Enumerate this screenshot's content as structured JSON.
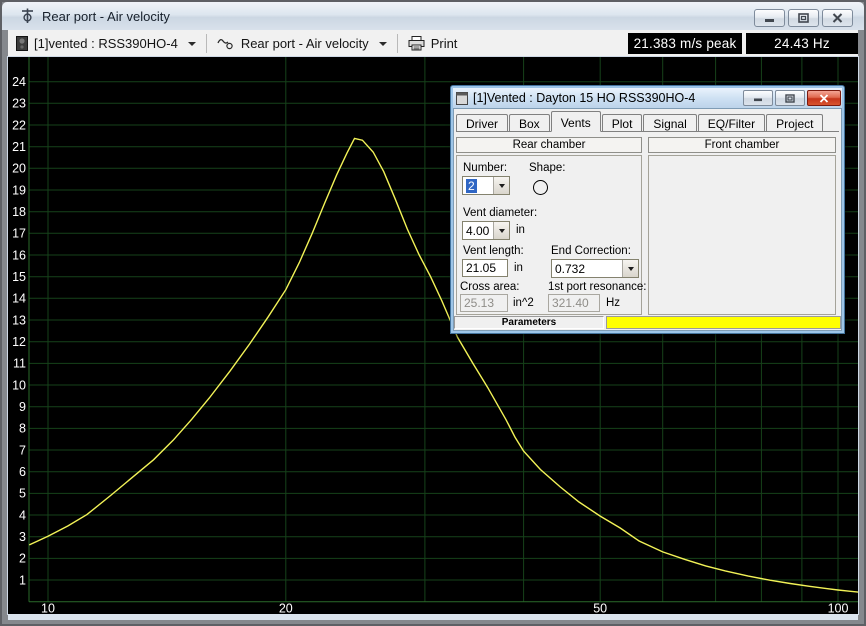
{
  "window": {
    "title": "Rear port - Air velocity"
  },
  "icons": {
    "window": "port-crosshair-icon",
    "driver_select": "speaker-box-icon",
    "plot_select": "sine-wave-port-icon",
    "print": "printer-icon",
    "dialog": "form-icon",
    "shape": "circle-shape-icon"
  },
  "toolbar": {
    "driver_select": "[1]vented : RSS390HO-4",
    "plot_select": "Rear port - Air velocity",
    "print_label": "Print",
    "peak_readout": "21.383 m/s peak",
    "freq_readout": "24.43 Hz"
  },
  "chart_data": {
    "type": "line",
    "title": "Rear port - Air velocity",
    "xlabel": "",
    "ylabel": "",
    "x_scale": "log",
    "x_range": [
      8.9,
      107.4
    ],
    "y_range": [
      0,
      25.1
    ],
    "grid": true,
    "grid_color": "#16421a",
    "axis_color": "#2a6a2a",
    "background": "#000000",
    "x_ticks": [
      10,
      20,
      50,
      100
    ],
    "x_gridlines": [
      10,
      20,
      30,
      40,
      50,
      60,
      70,
      80,
      90,
      100
    ],
    "y_gridlines": [
      1,
      2,
      3,
      4,
      5,
      6,
      7,
      8,
      9,
      10,
      11,
      12,
      13,
      14,
      15,
      16,
      17,
      18,
      19,
      20,
      21,
      22,
      23,
      24
    ],
    "peak": {
      "velocity_m_s": 21.383,
      "frequency_hz": 24.43
    },
    "series": [
      {
        "name": "Rear port air velocity (m/s)",
        "color": "#f2f257",
        "points": [
          [
            9.47,
            2.62
          ],
          [
            10,
            3.02
          ],
          [
            10.6,
            3.5
          ],
          [
            11.2,
            4.02
          ],
          [
            12,
            4.9
          ],
          [
            12.8,
            5.75
          ],
          [
            13.6,
            6.55
          ],
          [
            14.4,
            7.45
          ],
          [
            15.2,
            8.42
          ],
          [
            16,
            9.4
          ],
          [
            17,
            10.65
          ],
          [
            18,
            11.9
          ],
          [
            19,
            13.15
          ],
          [
            20,
            14.4
          ],
          [
            20.8,
            15.65
          ],
          [
            21.6,
            17.0
          ],
          [
            22.4,
            18.4
          ],
          [
            23.2,
            19.7
          ],
          [
            23.9,
            20.7
          ],
          [
            24.43,
            21.383
          ],
          [
            25,
            21.3
          ],
          [
            25.8,
            20.75
          ],
          [
            26.6,
            19.85
          ],
          [
            27.5,
            18.6
          ],
          [
            28.5,
            17.2
          ],
          [
            29.5,
            16.0
          ],
          [
            30.5,
            15.0
          ],
          [
            31.5,
            13.9
          ],
          [
            33,
            12.2
          ],
          [
            34.5,
            11.0
          ],
          [
            36,
            9.9
          ],
          [
            38,
            8.4
          ],
          [
            39,
            7.6
          ],
          [
            40,
            6.95
          ],
          [
            42,
            6.1
          ],
          [
            44.5,
            5.3
          ],
          [
            47,
            4.6
          ],
          [
            50,
            3.95
          ],
          [
            53,
            3.4
          ],
          [
            56,
            2.8
          ],
          [
            60,
            2.3
          ],
          [
            64,
            1.95
          ],
          [
            68,
            1.65
          ],
          [
            72,
            1.42
          ],
          [
            77,
            1.18
          ],
          [
            82,
            0.99
          ],
          [
            87,
            0.84
          ],
          [
            92,
            0.71
          ],
          [
            97,
            0.6
          ],
          [
            100,
            0.54
          ],
          [
            103,
            0.49
          ],
          [
            107,
            0.43
          ]
        ]
      }
    ]
  },
  "dialog": {
    "title": "[1]Vented : Dayton 15 HO RSS390HO-4",
    "tabs": [
      "Driver",
      "Box",
      "Vents",
      "Plot",
      "Signal",
      "EQ/Filter",
      "Project"
    ],
    "active_tab": "Vents",
    "rear_chamber_label": "Rear chamber",
    "front_chamber_label": "Front chamber",
    "fields": {
      "number_label": "Number:",
      "number_value": "2",
      "shape_label": "Shape:",
      "vent_diameter_label": "Vent diameter:",
      "vent_diameter_value": "4.00",
      "vent_diameter_unit": "in",
      "vent_length_label": "Vent length:",
      "vent_length_value": "21.05",
      "vent_length_unit": "in",
      "end_correction_label": "End Correction:",
      "end_correction_value": "0.732",
      "cross_area_label": "Cross area:",
      "cross_area_value": "25.13",
      "cross_area_unit": "in^2",
      "port_resonance_label": "1st port resonance:",
      "port_resonance_value": "321.40",
      "port_resonance_unit": "Hz"
    },
    "statusbar": {
      "parameters_label": "Parameters"
    }
  }
}
